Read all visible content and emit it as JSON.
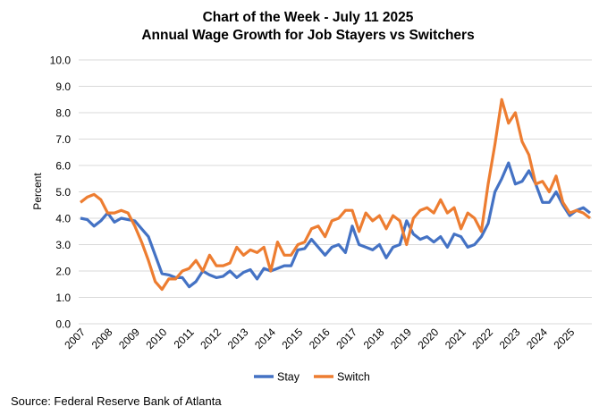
{
  "chart_data": {
    "type": "line",
    "title": "Chart of the Week - July 11 2025",
    "subtitle": "Annual Wage Growth for Job Stayers vs Switchers",
    "xlabel": "",
    "ylabel": "Percent",
    "ylim": [
      0,
      10
    ],
    "xlim": [
      2007,
      2025.75
    ],
    "grid": true,
    "legend": "bottom",
    "y_ticks": [
      "0.0",
      "1.0",
      "2.0",
      "3.0",
      "4.0",
      "5.0",
      "6.0",
      "7.0",
      "8.0",
      "9.0",
      "10.0"
    ],
    "x_ticks": [
      "2007",
      "2008",
      "2009",
      "2010",
      "2011",
      "2012",
      "2013",
      "2014",
      "2015",
      "2016",
      "2017",
      "2018",
      "2019",
      "2020",
      "2021",
      "2022",
      "2023",
      "2024",
      "2025"
    ],
    "x": [
      2007.0,
      2007.25,
      2007.5,
      2007.75,
      2008.0,
      2008.25,
      2008.5,
      2008.75,
      2009.0,
      2009.25,
      2009.5,
      2009.75,
      2010.0,
      2010.25,
      2010.5,
      2010.75,
      2011.0,
      2011.25,
      2011.5,
      2011.75,
      2012.0,
      2012.25,
      2012.5,
      2012.75,
      2013.0,
      2013.25,
      2013.5,
      2013.75,
      2014.0,
      2014.25,
      2014.5,
      2014.75,
      2015.0,
      2015.25,
      2015.5,
      2015.75,
      2016.0,
      2016.25,
      2016.5,
      2016.75,
      2017.0,
      2017.25,
      2017.5,
      2017.75,
      2018.0,
      2018.25,
      2018.5,
      2018.75,
      2019.0,
      2019.25,
      2019.5,
      2019.75,
      2020.0,
      2020.25,
      2020.5,
      2020.75,
      2021.0,
      2021.25,
      2021.5,
      2021.75,
      2022.0,
      2022.25,
      2022.5,
      2022.75,
      2023.0,
      2023.25,
      2023.5,
      2023.75,
      2024.0,
      2024.25,
      2024.5,
      2024.75,
      2025.0,
      2025.25,
      2025.5,
      2025.75
    ],
    "series": [
      {
        "name": "Stay",
        "color": "#4472C4",
        "values": [
          4.0,
          3.95,
          3.7,
          3.9,
          4.2,
          3.85,
          4.0,
          3.95,
          3.9,
          3.6,
          3.3,
          2.6,
          1.9,
          1.85,
          1.75,
          1.75,
          1.4,
          1.6,
          2.0,
          1.85,
          1.75,
          1.8,
          2.0,
          1.75,
          1.95,
          2.05,
          1.7,
          2.1,
          2.0,
          2.1,
          2.2,
          2.2,
          2.8,
          2.85,
          3.2,
          2.9,
          2.6,
          2.9,
          3.0,
          2.7,
          3.7,
          3.0,
          2.9,
          2.8,
          3.0,
          2.5,
          2.9,
          3.0,
          3.9,
          3.4,
          3.2,
          3.3,
          3.1,
          3.3,
          2.9,
          3.4,
          3.3,
          2.9,
          3.0,
          3.3,
          3.8,
          5.0,
          5.5,
          6.1,
          5.3,
          5.4,
          5.8,
          5.3,
          4.6,
          4.6,
          5.0,
          4.5,
          4.1,
          4.3,
          4.4,
          4.2
        ]
      },
      {
        "name": "Switch",
        "color": "#ED7D31",
        "values": [
          4.6,
          4.8,
          4.9,
          4.7,
          4.2,
          4.2,
          4.3,
          4.2,
          3.7,
          3.1,
          2.4,
          1.6,
          1.3,
          1.7,
          1.7,
          2.0,
          2.1,
          2.4,
          2.0,
          2.6,
          2.2,
          2.2,
          2.3,
          2.9,
          2.6,
          2.8,
          2.7,
          2.9,
          2.0,
          3.1,
          2.6,
          2.6,
          3.0,
          3.1,
          3.6,
          3.7,
          3.3,
          3.9,
          4.0,
          4.3,
          4.3,
          3.5,
          4.2,
          3.9,
          4.1,
          3.6,
          4.1,
          3.9,
          3.0,
          4.0,
          4.3,
          4.4,
          4.2,
          4.7,
          4.2,
          4.4,
          3.6,
          4.2,
          4.0,
          3.5,
          5.3,
          6.8,
          8.5,
          7.6,
          8.0,
          6.9,
          6.4,
          5.3,
          5.4,
          5.0,
          5.6,
          4.6,
          4.2,
          4.3,
          4.2,
          4.0
        ]
      }
    ],
    "source": "Source: Federal Reserve Bank of Atlanta"
  }
}
